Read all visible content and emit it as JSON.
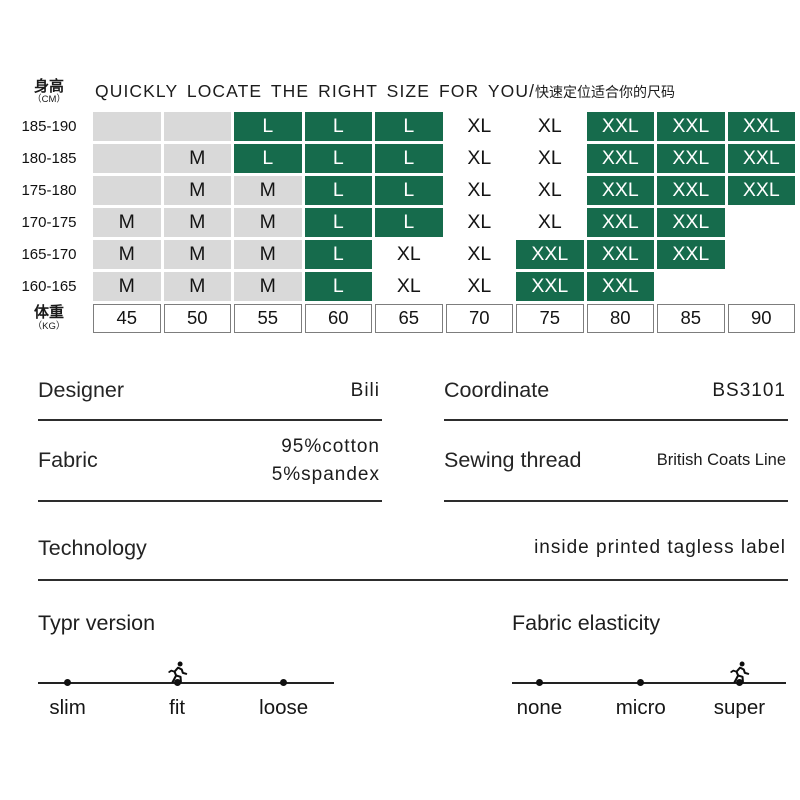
{
  "colors": {
    "green": "#166B4C",
    "gray": "#D9D9D9"
  },
  "header": {
    "title_en": "QUICKLY LOCATE THE RIGHT SIZE FOR YOU",
    "title_sep": "/",
    "title_zh": "快速定位适合你的尺码"
  },
  "size_chart": {
    "height_label": "身高",
    "height_unit": "（CM）",
    "weight_label": "体重",
    "weight_unit": "（KG）",
    "rows": [
      {
        "height": "185-190",
        "cells": [
          "",
          "",
          "L",
          "L",
          "L",
          "XL",
          "XL",
          "XXL",
          "XXL",
          "XXL"
        ]
      },
      {
        "height": "180-185",
        "cells": [
          "",
          "M",
          "L",
          "L",
          "L",
          "XL",
          "XL",
          "XXL",
          "XXL",
          "XXL"
        ]
      },
      {
        "height": "175-180",
        "cells": [
          "",
          "M",
          "M",
          "L",
          "L",
          "XL",
          "XL",
          "XXL",
          "XXL",
          "XXL"
        ]
      },
      {
        "height": "170-175",
        "cells": [
          "M",
          "M",
          "M",
          "L",
          "L",
          "XL",
          "XL",
          "XXL",
          "XXL",
          ""
        ]
      },
      {
        "height": "165-170",
        "cells": [
          "M",
          "M",
          "M",
          "L",
          "XL",
          "XL",
          "XXL",
          "XXL",
          "XXL",
          ""
        ]
      },
      {
        "height": "160-165",
        "cells": [
          "M",
          "M",
          "M",
          "L",
          "XL",
          "XL",
          "XXL",
          "XXL",
          "",
          ""
        ]
      }
    ],
    "weights": [
      "45",
      "50",
      "55",
      "60",
      "65",
      "70",
      "75",
      "80",
      "85",
      "90"
    ]
  },
  "details": [
    {
      "label": "Designer",
      "value": "Bili"
    },
    {
      "label": "Coordinate",
      "value": "BS3101"
    },
    {
      "label": "Fabric",
      "value": "95%cotton\n5%spandex"
    },
    {
      "label": "Sewing thread",
      "value": "British Coats Line"
    },
    {
      "label": "Technology",
      "value": "inside printed tagless label"
    }
  ],
  "sliders": [
    {
      "title": "Typr version",
      "options": [
        "slim",
        "fit",
        "loose"
      ],
      "active": "fit"
    },
    {
      "title": "Fabric elasticity",
      "options": [
        "none",
        "micro",
        "super"
      ],
      "active": "super"
    }
  ]
}
